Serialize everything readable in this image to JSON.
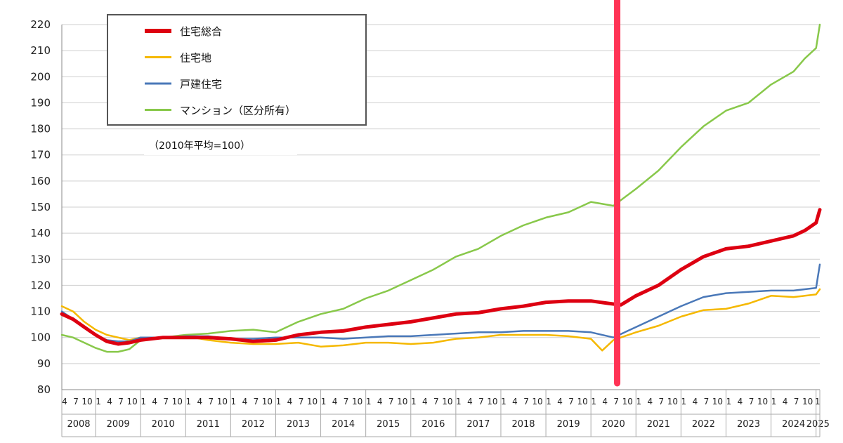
{
  "chart_data": {
    "type": "line",
    "note": "（2010年平均=100）",
    "y_ticks": [
      "80",
      "90",
      "100",
      "110",
      "120",
      "130",
      "140",
      "150",
      "160",
      "170",
      "180",
      "190",
      "200",
      "210",
      "220"
    ],
    "ylim": [
      80,
      220
    ],
    "grid": true,
    "legend_position": "top-left",
    "x_month_labels": [
      "1",
      "4",
      "7",
      "10"
    ],
    "first_month_labels": [
      "4",
      "7",
      "10"
    ],
    "years": [
      "2008",
      "2009",
      "2010",
      "2011",
      "2012",
      "2013",
      "2014",
      "2015",
      "2016",
      "2017",
      "2018",
      "2019",
      "2020",
      "2021",
      "2022",
      "2023",
      "2024",
      "2025"
    ],
    "x_start": "2008-04",
    "x_end": "2025-02",
    "marker_line": {
      "at": "2020-08",
      "color": "#ff3355"
    },
    "series": [
      {
        "name": "住宅総合",
        "color": "#dd0011",
        "points": [
          [
            "2008-04",
            109
          ],
          [
            "2008-07",
            107
          ],
          [
            "2008-10",
            104
          ],
          [
            "2009-01",
            101
          ],
          [
            "2009-04",
            98.5
          ],
          [
            "2009-07",
            97.5
          ],
          [
            "2009-10",
            98
          ],
          [
            "2010-01",
            99
          ],
          [
            "2010-07",
            100
          ],
          [
            "2011-01",
            100
          ],
          [
            "2011-07",
            100
          ],
          [
            "2012-01",
            99.5
          ],
          [
            "2012-07",
            98.5
          ],
          [
            "2013-01",
            99
          ],
          [
            "2013-07",
            101
          ],
          [
            "2014-01",
            102
          ],
          [
            "2014-07",
            102.5
          ],
          [
            "2015-01",
            104
          ],
          [
            "2015-07",
            105
          ],
          [
            "2016-01",
            106
          ],
          [
            "2016-07",
            107.5
          ],
          [
            "2017-01",
            109
          ],
          [
            "2017-07",
            109.5
          ],
          [
            "2018-01",
            111
          ],
          [
            "2018-07",
            112
          ],
          [
            "2019-01",
            113.5
          ],
          [
            "2019-07",
            114
          ],
          [
            "2020-01",
            114
          ],
          [
            "2020-06",
            113
          ],
          [
            "2020-09",
            112.5
          ],
          [
            "2021-01",
            116
          ],
          [
            "2021-07",
            120
          ],
          [
            "2022-01",
            126
          ],
          [
            "2022-07",
            131
          ],
          [
            "2023-01",
            134
          ],
          [
            "2023-07",
            135
          ],
          [
            "2024-01",
            137
          ],
          [
            "2024-07",
            139
          ],
          [
            "2024-10",
            141
          ],
          [
            "2025-01",
            144
          ],
          [
            "2025-02",
            149
          ]
        ]
      },
      {
        "name": "住宅地",
        "color": "#f5b800",
        "points": [
          [
            "2008-04",
            112
          ],
          [
            "2008-07",
            110
          ],
          [
            "2008-10",
            106
          ],
          [
            "2009-01",
            103
          ],
          [
            "2009-04",
            101
          ],
          [
            "2009-07",
            100
          ],
          [
            "2009-10",
            99
          ],
          [
            "2010-01",
            100
          ],
          [
            "2010-07",
            100
          ],
          [
            "2011-01",
            100.5
          ],
          [
            "2011-07",
            99
          ],
          [
            "2012-01",
            98
          ],
          [
            "2012-07",
            97.5
          ],
          [
            "2013-01",
            97.5
          ],
          [
            "2013-07",
            98
          ],
          [
            "2014-01",
            96.5
          ],
          [
            "2014-07",
            97
          ],
          [
            "2015-01",
            98
          ],
          [
            "2015-07",
            98
          ],
          [
            "2016-01",
            97.5
          ],
          [
            "2016-07",
            98
          ],
          [
            "2017-01",
            99.5
          ],
          [
            "2017-07",
            100
          ],
          [
            "2018-01",
            101
          ],
          [
            "2018-07",
            101
          ],
          [
            "2019-01",
            101
          ],
          [
            "2019-07",
            100.5
          ],
          [
            "2020-01",
            99.5
          ],
          [
            "2020-04",
            95
          ],
          [
            "2020-07",
            99
          ],
          [
            "2021-01",
            102
          ],
          [
            "2021-07",
            104.5
          ],
          [
            "2022-01",
            108
          ],
          [
            "2022-07",
            110.5
          ],
          [
            "2023-01",
            111
          ],
          [
            "2023-07",
            113
          ],
          [
            "2024-01",
            116
          ],
          [
            "2024-07",
            115.5
          ],
          [
            "2024-10",
            116
          ],
          [
            "2025-01",
            116.5
          ],
          [
            "2025-02",
            118.5
          ]
        ]
      },
      {
        "name": "戸建住宅",
        "color": "#4a78b8",
        "points": [
          [
            "2008-04",
            110
          ],
          [
            "2008-07",
            107
          ],
          [
            "2008-10",
            104
          ],
          [
            "2009-01",
            101
          ],
          [
            "2009-04",
            99
          ],
          [
            "2009-07",
            98.5
          ],
          [
            "2009-10",
            98.5
          ],
          [
            "2010-01",
            100
          ],
          [
            "2010-07",
            100
          ],
          [
            "2011-01",
            100.5
          ],
          [
            "2011-07",
            100.5
          ],
          [
            "2012-01",
            99.5
          ],
          [
            "2012-07",
            99.5
          ],
          [
            "2013-01",
            100
          ],
          [
            "2013-07",
            100
          ],
          [
            "2014-01",
            100
          ],
          [
            "2014-07",
            99.5
          ],
          [
            "2015-01",
            100
          ],
          [
            "2015-07",
            100.5
          ],
          [
            "2016-01",
            100.5
          ],
          [
            "2016-07",
            101
          ],
          [
            "2017-01",
            101.5
          ],
          [
            "2017-07",
            102
          ],
          [
            "2018-01",
            102
          ],
          [
            "2018-07",
            102.5
          ],
          [
            "2019-01",
            102.5
          ],
          [
            "2019-07",
            102.5
          ],
          [
            "2020-01",
            102
          ],
          [
            "2020-07",
            100
          ],
          [
            "2021-01",
            104
          ],
          [
            "2021-07",
            108
          ],
          [
            "2022-01",
            112
          ],
          [
            "2022-07",
            115.5
          ],
          [
            "2023-01",
            117
          ],
          [
            "2023-07",
            117.5
          ],
          [
            "2024-01",
            118
          ],
          [
            "2024-07",
            118
          ],
          [
            "2024-10",
            118.5
          ],
          [
            "2025-01",
            119
          ],
          [
            "2025-02",
            128
          ]
        ]
      },
      {
        "name": "マンション（区分所有）",
        "color": "#88c84a",
        "points": [
          [
            "2008-04",
            101
          ],
          [
            "2008-07",
            100
          ],
          [
            "2008-10",
            98
          ],
          [
            "2009-01",
            96
          ],
          [
            "2009-04",
            94.5
          ],
          [
            "2009-07",
            94.5
          ],
          [
            "2009-10",
            95.5
          ],
          [
            "2010-01",
            99
          ],
          [
            "2010-07",
            100
          ],
          [
            "2011-01",
            101
          ],
          [
            "2011-07",
            101.5
          ],
          [
            "2012-01",
            102.5
          ],
          [
            "2012-07",
            103
          ],
          [
            "2013-01",
            102
          ],
          [
            "2013-07",
            106
          ],
          [
            "2014-01",
            109
          ],
          [
            "2014-07",
            111
          ],
          [
            "2015-01",
            115
          ],
          [
            "2015-07",
            118
          ],
          [
            "2016-01",
            122
          ],
          [
            "2016-07",
            126
          ],
          [
            "2017-01",
            131
          ],
          [
            "2017-07",
            134
          ],
          [
            "2018-01",
            139
          ],
          [
            "2018-07",
            143
          ],
          [
            "2019-01",
            146
          ],
          [
            "2019-07",
            148
          ],
          [
            "2020-01",
            152
          ],
          [
            "2020-07",
            150.5
          ],
          [
            "2021-01",
            157
          ],
          [
            "2021-07",
            164
          ],
          [
            "2022-01",
            173
          ],
          [
            "2022-07",
            181
          ],
          [
            "2023-01",
            187
          ],
          [
            "2023-07",
            190
          ],
          [
            "2024-01",
            197
          ],
          [
            "2024-07",
            202
          ],
          [
            "2024-10",
            207
          ],
          [
            "2025-01",
            211
          ],
          [
            "2025-02",
            220
          ]
        ]
      }
    ]
  }
}
